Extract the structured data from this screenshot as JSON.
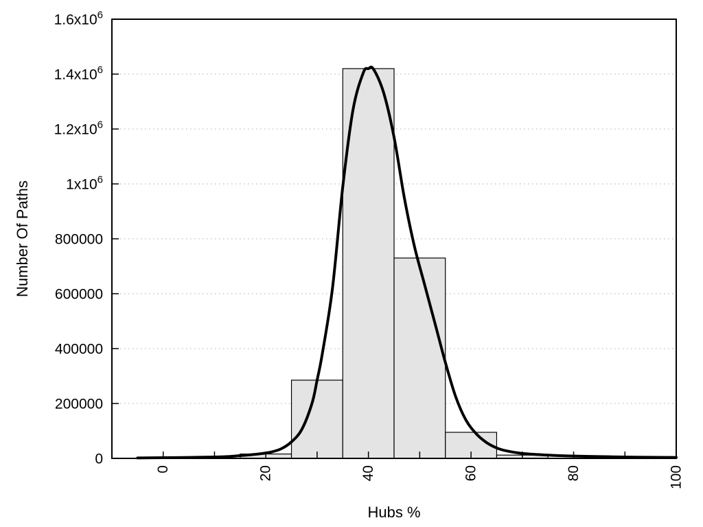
{
  "chart_data": {
    "type": "bar",
    "subtype": "histogram_with_density_curve",
    "title": "",
    "xlabel": "Hubs %",
    "ylabel": "Number Of Paths",
    "xlim": [
      -10,
      100
    ],
    "ylim": [
      0,
      1600000
    ],
    "grid": {
      "horizontal_dotted": true,
      "vertical": false
    },
    "legend": "none",
    "x_ticks": [
      {
        "value": 0,
        "label": "0"
      },
      {
        "value": 10,
        "label": ""
      },
      {
        "value": 20,
        "label": "20"
      },
      {
        "value": 30,
        "label": ""
      },
      {
        "value": 40,
        "label": "40"
      },
      {
        "value": 50,
        "label": ""
      },
      {
        "value": 60,
        "label": "60"
      },
      {
        "value": 70,
        "label": ""
      },
      {
        "value": 80,
        "label": "80"
      },
      {
        "value": 90,
        "label": ""
      },
      {
        "value": 100,
        "label": "100"
      }
    ],
    "y_ticks": [
      {
        "value": 0,
        "label": "0"
      },
      {
        "value": 200000,
        "label": "200000"
      },
      {
        "value": 400000,
        "label": "400000"
      },
      {
        "value": 600000,
        "label": "600000"
      },
      {
        "value": 800000,
        "label": "800000"
      },
      {
        "value": 1000000,
        "label": "1x10^6"
      },
      {
        "value": 1200000,
        "label": "1.2x10^6"
      },
      {
        "value": 1400000,
        "label": "1.4x10^6"
      },
      {
        "value": 1600000,
        "label": "1.6x10^6"
      }
    ],
    "bars": {
      "bin_width": 10,
      "centers": [
        20,
        30,
        40,
        50,
        60,
        70
      ],
      "heights": [
        16000,
        285000,
        1420000,
        730000,
        95000,
        12000
      ]
    },
    "curve": {
      "name": "density-curve",
      "points": [
        [
          -5,
          1500
        ],
        [
          0,
          2500
        ],
        [
          5,
          3500
        ],
        [
          10,
          5000
        ],
        [
          13,
          7000
        ],
        [
          15,
          10000
        ],
        [
          17,
          13000
        ],
        [
          19,
          17000
        ],
        [
          21,
          23000
        ],
        [
          23,
          35000
        ],
        [
          25,
          60000
        ],
        [
          27,
          105000
        ],
        [
          29,
          200000
        ],
        [
          30,
          285000
        ],
        [
          31,
          380000
        ],
        [
          33,
          620000
        ],
        [
          35,
          990000
        ],
        [
          37,
          1270000
        ],
        [
          39,
          1405000
        ],
        [
          40,
          1420000
        ],
        [
          41,
          1418000
        ],
        [
          43,
          1330000
        ],
        [
          45,
          1170000
        ],
        [
          47,
          950000
        ],
        [
          49,
          770000
        ],
        [
          51,
          630000
        ],
        [
          53,
          490000
        ],
        [
          55,
          350000
        ],
        [
          57,
          225000
        ],
        [
          59,
          140000
        ],
        [
          61,
          90000
        ],
        [
          63,
          58000
        ],
        [
          65,
          38000
        ],
        [
          67,
          27000
        ],
        [
          70,
          18000
        ],
        [
          73,
          14000
        ],
        [
          76,
          11000
        ],
        [
          80,
          8500
        ],
        [
          85,
          6500
        ],
        [
          90,
          5000
        ],
        [
          95,
          4000
        ],
        [
          100,
          3500
        ]
      ]
    },
    "colors": {
      "background": "#ffffff",
      "frame": "#000000",
      "bar_fill": "#e4e4e4",
      "bar_stroke": "#000000",
      "curve": "#000000",
      "grid": "#bbbbbb",
      "text": "#000000"
    }
  }
}
